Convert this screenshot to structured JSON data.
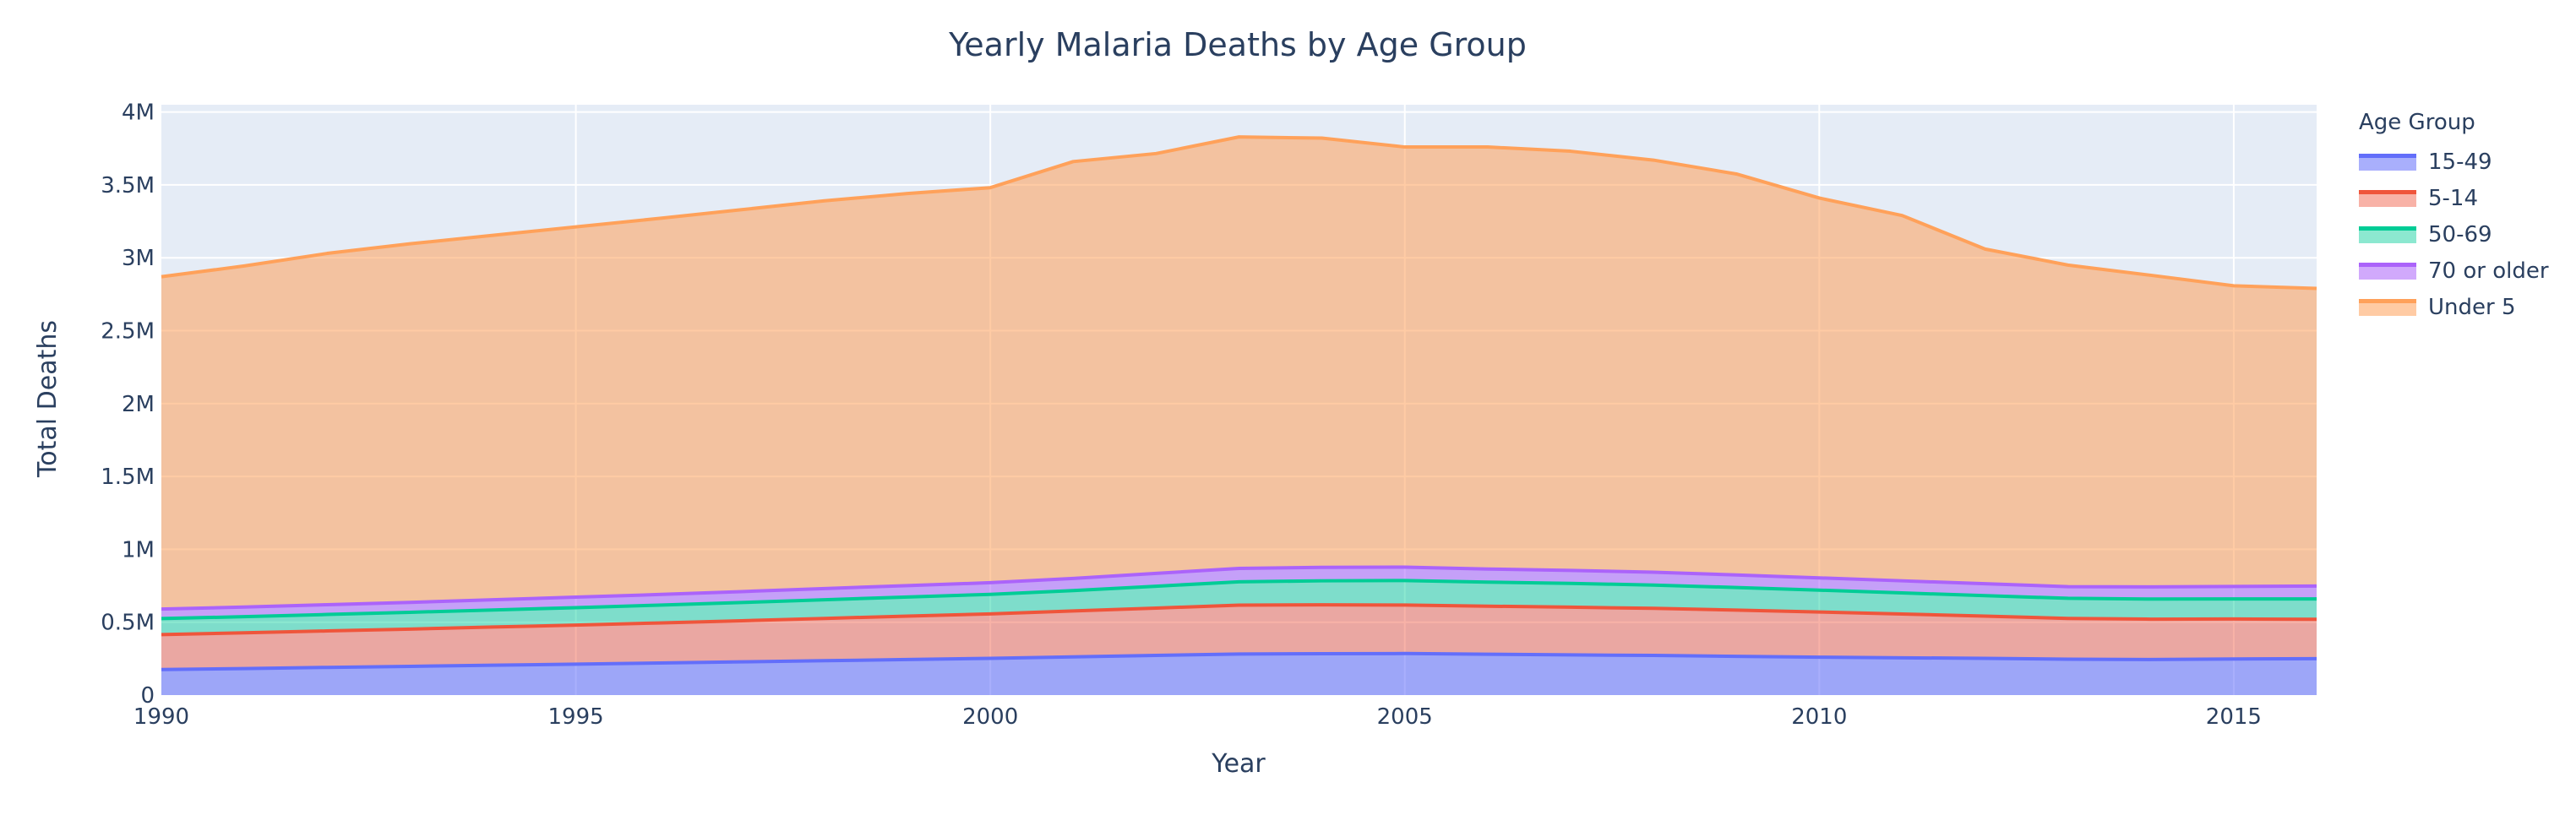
{
  "chart_data": {
    "type": "area",
    "title": "Yearly Malaria Deaths by Age Group",
    "xlabel": "Year",
    "ylabel": "Total Deaths",
    "xlim": [
      1990,
      2016
    ],
    "ylim": [
      0,
      4050000
    ],
    "x_ticks": [
      1990,
      1995,
      2000,
      2005,
      2010,
      2015
    ],
    "y_ticks": [
      0,
      500000,
      1000000,
      1500000,
      2000000,
      2500000,
      3000000,
      3500000,
      4000000
    ],
    "y_tick_labels": [
      "0",
      "0.5M",
      "1M",
      "1.5M",
      "2M",
      "2.5M",
      "3M",
      "3.5M",
      "4M"
    ],
    "legend_title": "Age Group",
    "legend_position": "right",
    "stacked": true,
    "grid": true,
    "x": [
      1990,
      1991,
      1992,
      1993,
      1994,
      1995,
      1996,
      1997,
      1998,
      1999,
      2000,
      2001,
      2002,
      2003,
      2004,
      2005,
      2006,
      2007,
      2008,
      2009,
      2010,
      2011,
      2012,
      2013,
      2014,
      2015,
      2016
    ],
    "series": [
      {
        "name": "15-49",
        "line_color": "#636efa",
        "fill_color": "rgba(99,110,250,0.55)",
        "values": [
          175000,
          182000,
          190000,
          197000,
          205000,
          212000,
          220000,
          228000,
          236000,
          244000,
          252000,
          262000,
          272000,
          282000,
          284000,
          285000,
          280000,
          276000,
          272000,
          266000,
          260000,
          256000,
          252000,
          246000,
          244000,
          248000,
          250000
        ]
      },
      {
        "name": "5-14",
        "line_color": "#ef553b",
        "fill_color": "rgba(239,85,59,0.45)",
        "values": [
          240000,
          245000,
          250000,
          256000,
          262000,
          268000,
          275000,
          282000,
          290000,
          298000,
          305000,
          315000,
          325000,
          335000,
          335000,
          333000,
          330000,
          327000,
          323000,
          317000,
          310000,
          300000,
          290000,
          280000,
          277000,
          274000,
          270000
        ]
      },
      {
        "name": "50-69",
        "line_color": "#00cc96",
        "fill_color": "rgba(0,204,150,0.45)",
        "values": [
          110000,
          111000,
          113000,
          115000,
          117000,
          120000,
          122000,
          125000,
          128000,
          131000,
          134000,
          140000,
          150000,
          160000,
          165000,
          168000,
          165000,
          163000,
          160000,
          155000,
          150000,
          145000,
          140000,
          138000,
          138000,
          138000,
          140000
        ]
      },
      {
        "name": "70 or older",
        "line_color": "#ab63fa",
        "fill_color": "rgba(171,99,250,0.55)",
        "values": [
          65000,
          66000,
          67000,
          68000,
          70000,
          72000,
          73000,
          75000,
          77000,
          78000,
          80000,
          83000,
          88000,
          92000,
          92000,
          92000,
          90000,
          89000,
          88000,
          86000,
          84000,
          83000,
          82000,
          80000,
          83000,
          85000,
          88000
        ]
      },
      {
        "name": "Under 5",
        "line_color": "#ffa15a",
        "fill_color": "rgba(255,161,90,0.55)",
        "values": [
          2280000,
          2340000,
          2410000,
          2460000,
          2500000,
          2540000,
          2580000,
          2620000,
          2660000,
          2690000,
          2710000,
          2860000,
          2880000,
          2960000,
          2945000,
          2882000,
          2895000,
          2876000,
          2827000,
          2751000,
          2606000,
          2506000,
          2296000,
          2206000,
          2138000,
          2063000,
          2042000
        ]
      }
    ]
  }
}
